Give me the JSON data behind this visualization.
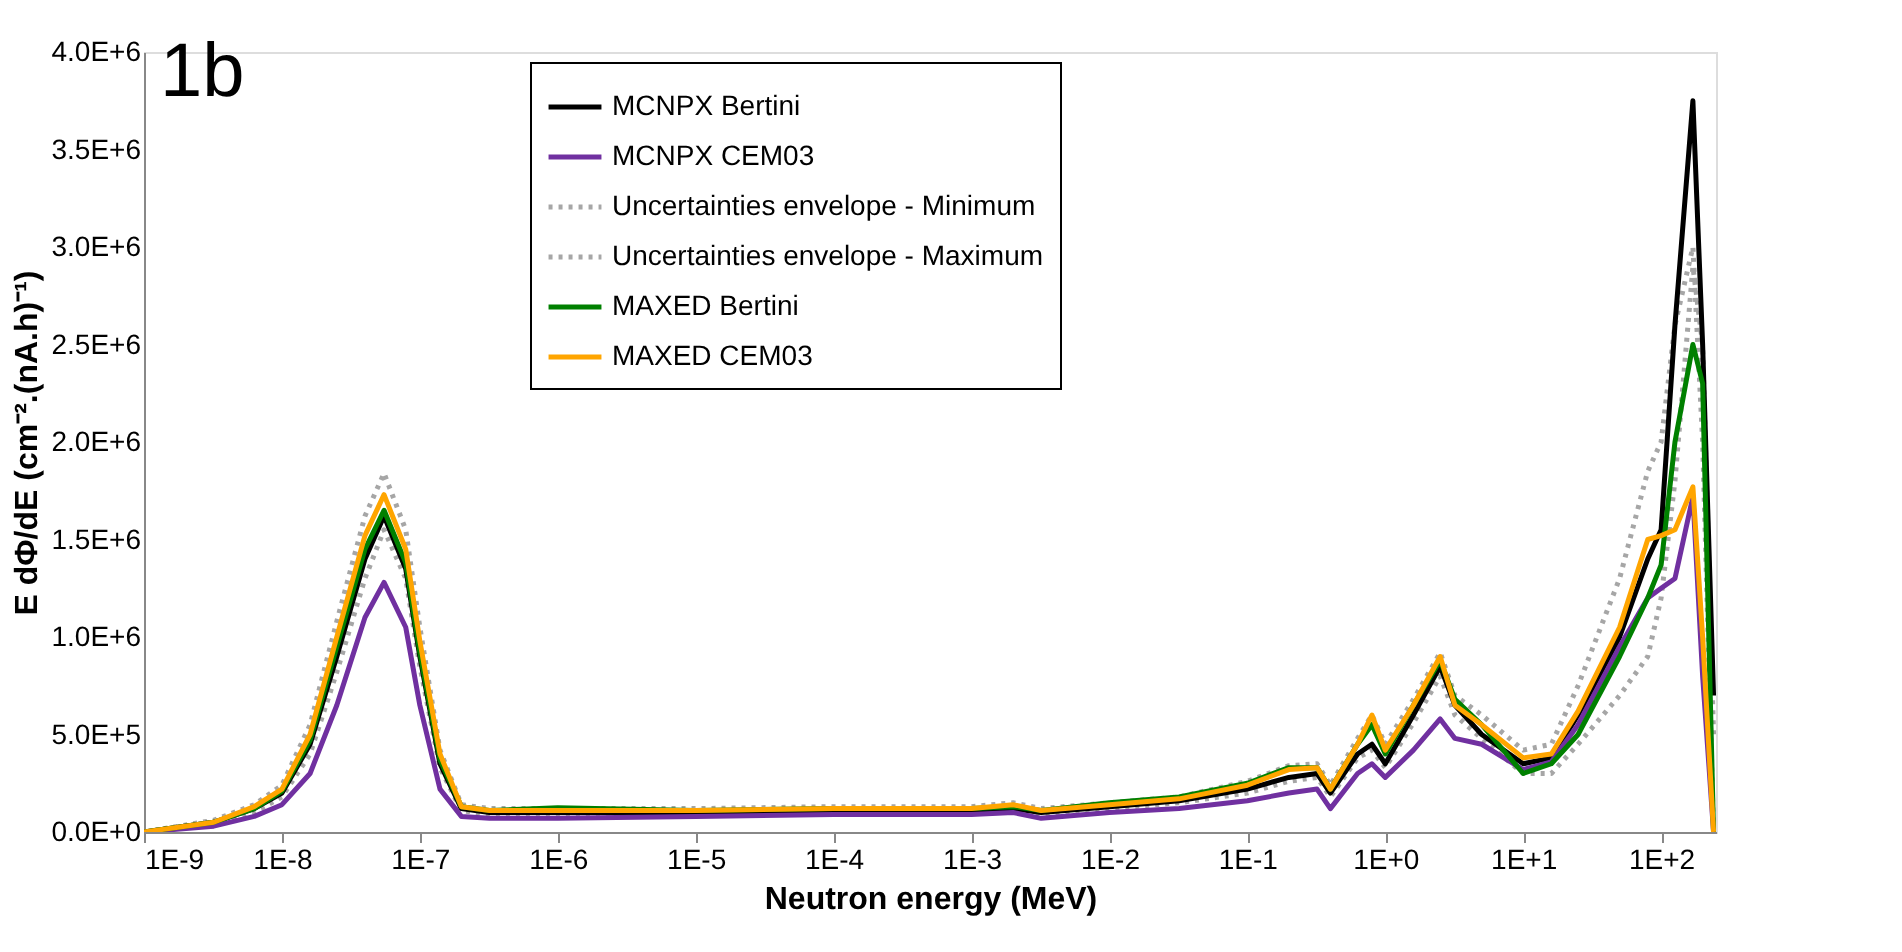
{
  "chart_data": {
    "type": "line",
    "xlabel": "Neutron energy (MeV)",
    "ylabel": "E dΦ/dE (cm⁻².(nA.h)⁻¹)",
    "annotations": [
      "1b"
    ],
    "log": "x",
    "grid": false,
    "legend": "top",
    "marker": "none",
    "x": [
      1e-09,
      3.2e-09,
      6.3e-09,
      1e-08,
      1.6e-08,
      2.5e-08,
      4e-08,
      5.5e-08,
      7.9e-08,
      1e-07,
      1.4e-07,
      2e-07,
      3.2e-07,
      1e-06,
      1e-05,
      0.0001,
      0.001,
      0.002,
      0.0032,
      0.01,
      0.032,
      0.1,
      0.2,
      0.32,
      0.4,
      0.63,
      0.8,
      1,
      1.6,
      2.5,
      3.2,
      5,
      10,
      16,
      25,
      50,
      80,
      100,
      126,
      170,
      200,
      240
    ],
    "xlim": [
      1e-09,
      250
    ],
    "xticks": [
      {
        "value": 1e-09,
        "label": "1E-9"
      },
      {
        "value": 1e-08,
        "label": "1E-8"
      },
      {
        "value": 1e-07,
        "label": "1E-7"
      },
      {
        "value": 1e-06,
        "label": "1E-6"
      },
      {
        "value": 1e-05,
        "label": "1E-5"
      },
      {
        "value": 0.0001,
        "label": "1E-4"
      },
      {
        "value": 0.001,
        "label": "1E-3"
      },
      {
        "value": 0.01,
        "label": "1E-2"
      },
      {
        "value": 0.1,
        "label": "1E-1"
      },
      {
        "value": 1,
        "label": "1E+0"
      },
      {
        "value": 10,
        "label": "1E+1"
      },
      {
        "value": 100,
        "label": "1E+2"
      }
    ],
    "ylim": [
      0,
      4000000
    ],
    "yticks": [
      {
        "value": 0,
        "label": "0.0E+0"
      },
      {
        "value": 500000,
        "label": "5.0E+5"
      },
      {
        "value": 1000000,
        "label": "1.0E+6"
      },
      {
        "value": 1500000,
        "label": "1.5E+6"
      },
      {
        "value": 2000000,
        "label": "2.0E+6"
      },
      {
        "value": 2500000,
        "label": "2.5E+6"
      },
      {
        "value": 3000000,
        "label": "3.0E+6"
      },
      {
        "value": 3500000,
        "label": "3.5E+6"
      },
      {
        "value": 4000000,
        "label": "4.0E+6"
      }
    ],
    "series": [
      {
        "name": "MCNPX Bertini",
        "color": "#000000",
        "line_style": "solid",
        "values": [
          0,
          50000.0,
          120000.0,
          200000.0,
          450000.0,
          900000.0,
          1400000.0,
          1620000.0,
          1350000.0,
          900000.0,
          350000.0,
          120000.0,
          100000.0,
          100000.0,
          100000.0,
          110000.0,
          110000.0,
          120000.0,
          100000.0,
          130000.0,
          160000.0,
          220000.0,
          280000.0,
          300000.0,
          200000.0,
          400000.0,
          450000.0,
          350000.0,
          600000.0,
          850000.0,
          650000.0,
          500000.0,
          350000.0,
          380000.0,
          600000.0,
          1000000.0,
          1400000.0,
          1550000.0,
          2600000.0,
          3750000.0,
          2500000.0,
          700000.0
        ]
      },
      {
        "name": "MCNPX CEM03",
        "color": "#7030a0",
        "line_style": "solid",
        "values": [
          0,
          30000.0,
          80000.0,
          140000.0,
          300000.0,
          650000.0,
          1100000.0,
          1280000.0,
          1050000.0,
          650000.0,
          220000.0,
          80000.0,
          70000.0,
          70000.0,
          80000.0,
          90000.0,
          90000.0,
          100000.0,
          70000.0,
          100000.0,
          120000.0,
          160000.0,
          200000.0,
          220000.0,
          120000.0,
          300000.0,
          350000.0,
          280000.0,
          420000.0,
          580000.0,
          480000.0,
          450000.0,
          320000.0,
          360000.0,
          550000.0,
          950000.0,
          1200000.0,
          1250000.0,
          1300000.0,
          1720000.0,
          800000.0,
          0
        ]
      },
      {
        "name": "Uncertainties envelope - Minimum",
        "color": "#a6a6a6",
        "line_style": "dotted",
        "values": [
          0,
          40000.0,
          100000.0,
          180000.0,
          400000.0,
          820000.0,
          1300000.0,
          1550000.0,
          1300000.0,
          850000.0,
          330000.0,
          110000.0,
          90000.0,
          90000.0,
          90000.0,
          100000.0,
          100000.0,
          110000.0,
          90000.0,
          120000.0,
          150000.0,
          200000.0,
          260000.0,
          280000.0,
          180000.0,
          380000.0,
          420000.0,
          330000.0,
          560000.0,
          800000.0,
          600000.0,
          480000.0,
          300000.0,
          300000.0,
          450000.0,
          700000.0,
          900000.0,
          1200000.0,
          1800000.0,
          2900000.0,
          2500000.0,
          500000.0
        ]
      },
      {
        "name": "Uncertainties envelope - Maximum",
        "color": "#a6a6a6",
        "line_style": "dotted",
        "values": [
          0,
          60000.0,
          140000.0,
          240000.0,
          550000.0,
          1080000.0,
          1620000.0,
          1840000.0,
          1550000.0,
          1050000.0,
          420000.0,
          140000.0,
          120000.0,
          120000.0,
          120000.0,
          130000.0,
          130000.0,
          150000.0,
          120000.0,
          150000.0,
          180000.0,
          260000.0,
          340000.0,
          350000.0,
          240000.0,
          480000.0,
          600000.0,
          450000.0,
          680000.0,
          920000.0,
          700000.0,
          600000.0,
          420000.0,
          450000.0,
          750000.0,
          1300000.0,
          1850000.0,
          2000000.0,
          2600000.0,
          3000000.0,
          2000000.0,
          0
        ]
      },
      {
        "name": "MAXED Bertini",
        "color": "#008000",
        "line_style": "solid",
        "values": [
          0,
          50000.0,
          120000.0,
          210000.0,
          470000.0,
          950000.0,
          1450000.0,
          1650000.0,
          1380000.0,
          920000.0,
          370000.0,
          130000.0,
          110000.0,
          125000.0,
          110000.0,
          120000.0,
          120000.0,
          130000.0,
          110000.0,
          150000.0,
          180000.0,
          250000.0,
          330000.0,
          330000.0,
          220000.0,
          450000.0,
          550000.0,
          400000.0,
          650000.0,
          880000.0,
          680000.0,
          550000.0,
          300000.0,
          350000.0,
          500000.0,
          900000.0,
          1200000.0,
          1370000.0,
          2000000.0,
          2500000.0,
          2300000.0,
          0
        ]
      },
      {
        "name": "MAXED CEM03",
        "color": "#ffa500",
        "line_style": "solid",
        "values": [
          0,
          50000.0,
          130000.0,
          220000.0,
          500000.0,
          1000000.0,
          1520000.0,
          1730000.0,
          1450000.0,
          980000.0,
          400000.0,
          130000.0,
          110000.0,
          110000.0,
          110000.0,
          120000.0,
          120000.0,
          140000.0,
          110000.0,
          140000.0,
          170000.0,
          240000.0,
          320000.0,
          330000.0,
          220000.0,
          450000.0,
          600000.0,
          420000.0,
          650000.0,
          900000.0,
          650000.0,
          550000.0,
          380000.0,
          400000.0,
          620000.0,
          1050000.0,
          1500000.0,
          1520000.0,
          1550000.0,
          1770000.0,
          1000000.0,
          0
        ]
      }
    ]
  }
}
